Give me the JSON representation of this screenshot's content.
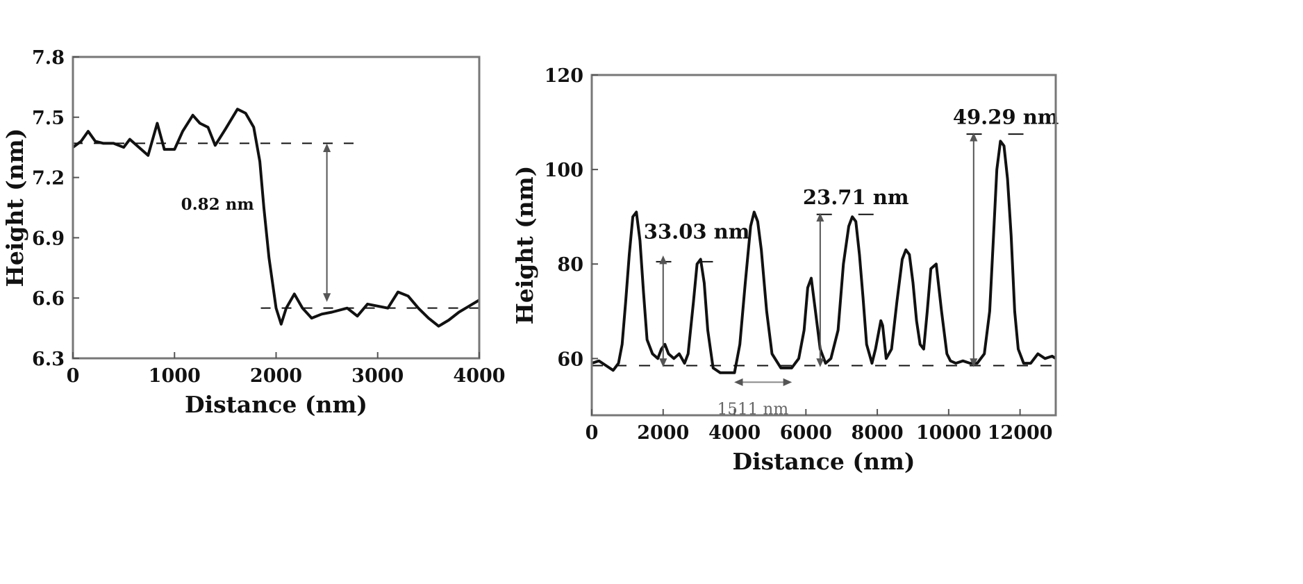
{
  "chart_data": [
    {
      "type": "line",
      "xlabel": "Distance (nm)",
      "ylabel": "Height (nm)",
      "xlim": [
        0,
        4000
      ],
      "ylim": [
        6.3,
        7.8
      ],
      "xticks": [
        0,
        1000,
        2000,
        3000,
        4000
      ],
      "xtick_labels": [
        "0",
        "1000",
        "2000",
        "3000",
        "4000"
      ],
      "yticks": [
        6.3,
        6.6,
        6.9,
        7.2,
        7.5,
        7.8
      ],
      "ytick_labels": [
        "6.3",
        "6.6",
        "6.9",
        "7.2",
        "7.5",
        "7.8"
      ],
      "series": [
        {
          "x": [
            0,
            80,
            150,
            220,
            300,
            400,
            500,
            560,
            650,
            740,
            830,
            900,
            1000,
            1080,
            1180,
            1250,
            1330,
            1400,
            1500,
            1620,
            1700,
            1780,
            1840,
            1880,
            1930,
            2000,
            2050,
            2100,
            2180,
            2260,
            2350,
            2450,
            2550,
            2700,
            2800,
            2900,
            3000,
            3100,
            3200,
            3300,
            3400,
            3500,
            3600,
            3700,
            3800,
            3900,
            4000
          ],
          "y": [
            7.35,
            7.38,
            7.43,
            7.38,
            7.37,
            7.37,
            7.35,
            7.39,
            7.35,
            7.31,
            7.47,
            7.34,
            7.34,
            7.43,
            7.51,
            7.47,
            7.45,
            7.36,
            7.44,
            7.54,
            7.52,
            7.45,
            7.28,
            7.05,
            6.8,
            6.55,
            6.47,
            6.55,
            6.62,
            6.55,
            6.5,
            6.52,
            6.53,
            6.55,
            6.51,
            6.57,
            6.56,
            6.55,
            6.63,
            6.61,
            6.55,
            6.5,
            6.46,
            6.49,
            6.53,
            6.56,
            6.59
          ]
        }
      ],
      "reference_levels": [
        7.37,
        6.55
      ],
      "annotations": [
        {
          "text": "0.82 nm",
          "x": 2500,
          "y_from": 6.6,
          "y_to": 7.35
        }
      ]
    },
    {
      "type": "line",
      "xlabel": "Distance (nm)",
      "ylabel": "Height (nm)",
      "xlim": [
        0,
        13000
      ],
      "ylim": [
        48,
        120
      ],
      "xticks": [
        0,
        2000,
        4000,
        6000,
        8000,
        10000,
        12000
      ],
      "xtick_labels": [
        "0",
        "2000",
        "4000",
        "6000",
        "8000",
        "10000",
        "12000"
      ],
      "yticks": [
        60,
        80,
        100,
        120
      ],
      "ytick_labels": [
        "60",
        "80",
        "100",
        "120"
      ],
      "series": [
        {
          "x": [
            0,
            200,
            400,
            600,
            750,
            850,
            950,
            1050,
            1150,
            1250,
            1350,
            1450,
            1550,
            1700,
            1850,
            1950,
            2050,
            2150,
            2300,
            2450,
            2600,
            2700,
            2850,
            2950,
            3050,
            3150,
            3250,
            3400,
            3600,
            3800,
            4000,
            4150,
            4300,
            4450,
            4550,
            4650,
            4750,
            4900,
            5050,
            5300,
            5600,
            5800,
            5950,
            6050,
            6150,
            6250,
            6400,
            6550,
            6700,
            6900,
            7050,
            7200,
            7300,
            7400,
            7500,
            7600,
            7700,
            7850,
            7950,
            8050,
            8100,
            8150,
            8250,
            8400,
            8550,
            8700,
            8800,
            8900,
            9000,
            9100,
            9200,
            9300,
            9400,
            9500,
            9650,
            9800,
            9950,
            10050,
            10200,
            10400,
            10600,
            10800,
            11000,
            11150,
            11250,
            11350,
            11450,
            11550,
            11650,
            11750,
            11850,
            11950,
            12100,
            12300,
            12500,
            12700,
            12900,
            13000
          ],
          "y": [
            59,
            59.5,
            58.5,
            57.5,
            59,
            63,
            72,
            82,
            90,
            91,
            85,
            74,
            64,
            61,
            60,
            62,
            63,
            61,
            60,
            61,
            59,
            61,
            72,
            80,
            81,
            76,
            66,
            58,
            57,
            57,
            57,
            63,
            76,
            88,
            91,
            89,
            83,
            70,
            61,
            58,
            58,
            60,
            66,
            75,
            77,
            71,
            62,
            59,
            60,
            66,
            80,
            88,
            90,
            89,
            82,
            73,
            63,
            59,
            62,
            66,
            68,
            67,
            60,
            62,
            72,
            81,
            83,
            82,
            76,
            68,
            63,
            62,
            70,
            79,
            80,
            70,
            61,
            59.5,
            59,
            59.5,
            59,
            59,
            61,
            70,
            85,
            100,
            106,
            105,
            98,
            86,
            70,
            62,
            59,
            59,
            61,
            60,
            60.5,
            60
          ]
        }
      ],
      "reference_levels": [
        58.5,
        80.5,
        90.5,
        107.5
      ],
      "annotations": [
        {
          "text": "33.03 nm",
          "x": 2000,
          "y_from": 59,
          "y_to": 81
        },
        {
          "text": "23.71 nm",
          "x": 6400,
          "y_from": 59,
          "y_to": 90
        },
        {
          "text": "49.29 nm",
          "x": 10700,
          "y_from": 59,
          "y_to": 107
        },
        {
          "text": "1511 nm",
          "x_from": 4100,
          "x_to": 5500,
          "y": 55
        }
      ]
    }
  ]
}
